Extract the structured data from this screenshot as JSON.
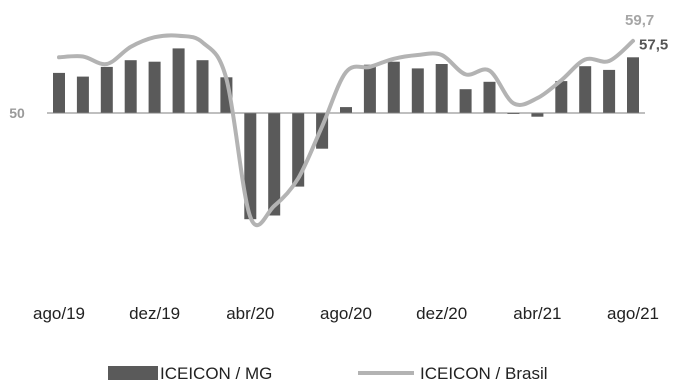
{
  "chart_data": {
    "type": "bar",
    "title": "",
    "xlabel": "",
    "ylabel": "",
    "reference_value": 50,
    "reference_label": "50",
    "ylim": [
      35,
      62
    ],
    "categories": [
      "ago/19",
      "set/19",
      "out/19",
      "nov/19",
      "dez/19",
      "jan/20",
      "fev/20",
      "mar/20",
      "abr/20",
      "mai/20",
      "jun/20",
      "jul/20",
      "ago/20",
      "set/20",
      "out/20",
      "nov/20",
      "dez/20",
      "jan/21",
      "fev/21",
      "mar/21",
      "abr/21",
      "mai/21",
      "jun/21",
      "jul/21",
      "ago/21"
    ],
    "tick_labels": [
      "ago/19",
      "",
      "",
      "",
      "dez/19",
      "",
      "",
      "",
      "abr/20",
      "",
      "",
      "",
      "ago/20",
      "",
      "",
      "",
      "dez/20",
      "",
      "",
      "",
      "abr/21",
      "",
      "",
      "",
      "ago/21"
    ],
    "series": [
      {
        "name": "ICEICON / MG",
        "kind": "bar",
        "color": "#5a5a5a",
        "values": [
          55.4,
          54.9,
          56.2,
          57.1,
          56.9,
          58.7,
          57.1,
          54.8,
          35.7,
          36.2,
          40.1,
          45.2,
          50.8,
          56.5,
          56.9,
          56.0,
          56.6,
          53.2,
          54.2,
          49.9,
          49.5,
          54.3,
          56.3,
          55.8,
          57.5
        ]
      },
      {
        "name": "ICEICON / Brasil",
        "kind": "line",
        "color": "#b3b3b3",
        "values": [
          57.5,
          57.6,
          56.6,
          58.9,
          60.2,
          60.4,
          59.5,
          54.6,
          36.0,
          37.5,
          41.2,
          48.2,
          55.5,
          56.2,
          57.3,
          57.8,
          57.8,
          55.2,
          55.7,
          51.3,
          52.0,
          54.4,
          57.2,
          57.0,
          59.7
        ]
      }
    ],
    "end_labels": {
      "brasil": "59,7",
      "mg": "57,5"
    },
    "legend": {
      "position": "bottom",
      "items": [
        "ICEICON / MG",
        "ICEICON / Brasil"
      ]
    },
    "grid": false
  }
}
